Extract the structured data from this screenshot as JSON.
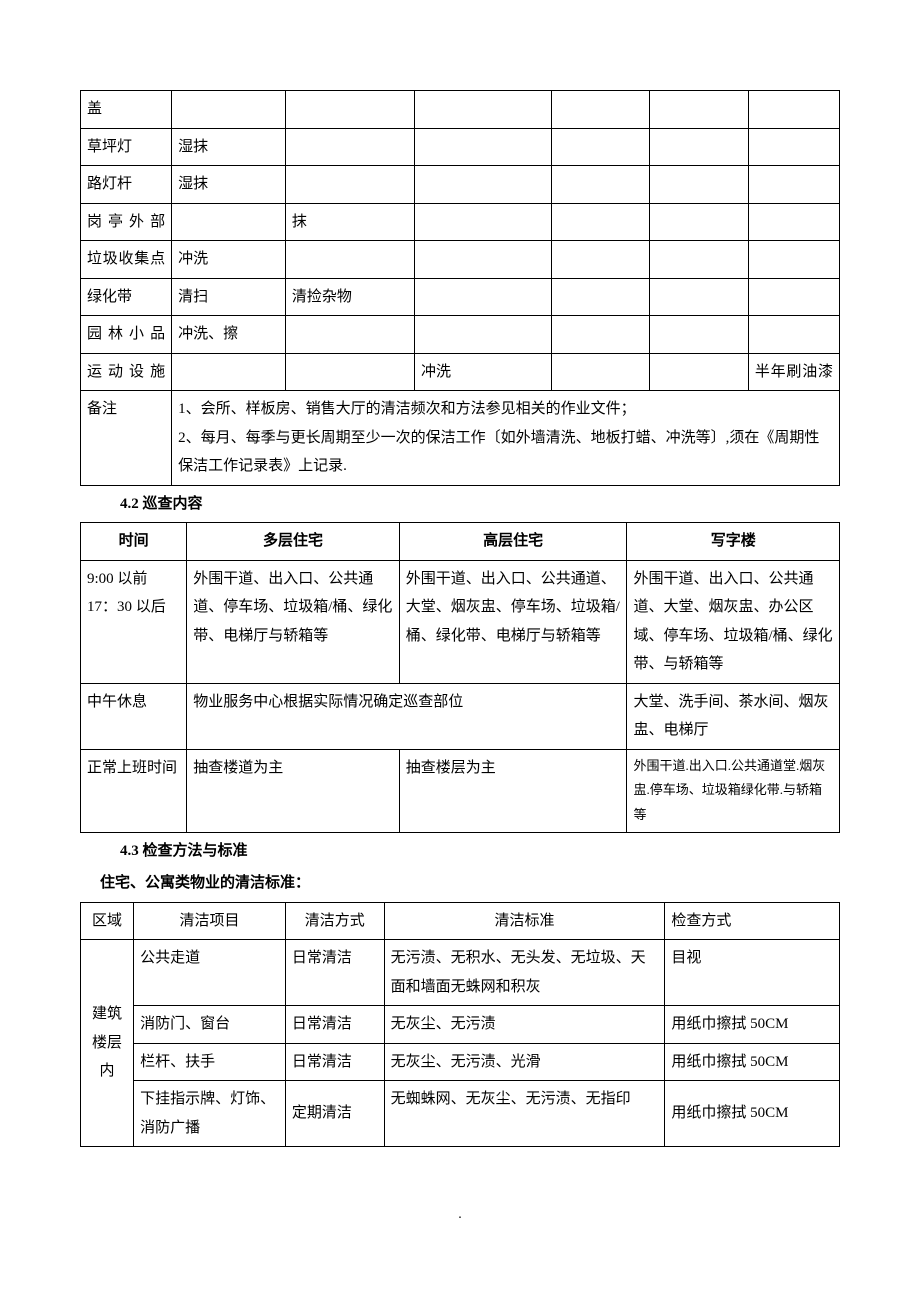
{
  "colors": {
    "text": "#000000",
    "border": "#000000",
    "background": "#ffffff"
  },
  "typography": {
    "font_family": "SimSun",
    "body_fontsize_pt": 11,
    "heading_weight": "bold",
    "line_height": 1.9
  },
  "table1": {
    "rows": [
      {
        "c0": "盖",
        "c1": "",
        "c2": "",
        "c3": "",
        "c4": "",
        "c5": "",
        "c6": ""
      },
      {
        "c0": "草坪灯",
        "c1": "湿抹",
        "c2": "",
        "c3": "",
        "c4": "",
        "c5": "",
        "c6": ""
      },
      {
        "c0": "路灯杆",
        "c1": "湿抹",
        "c2": "",
        "c3": "",
        "c4": "",
        "c5": "",
        "c6": ""
      },
      {
        "c0": "岗亭外部",
        "c1": "",
        "c2": "抹",
        "c3": "",
        "c4": "",
        "c5": "",
        "c6": ""
      },
      {
        "c0": "垃圾收集点",
        "c1": "冲洗",
        "c2": "",
        "c3": "",
        "c4": "",
        "c5": "",
        "c6": ""
      },
      {
        "c0": "绿化带",
        "c1": "清扫",
        "c2": "清捡杂物",
        "c3": "",
        "c4": "",
        "c5": "",
        "c6": ""
      },
      {
        "c0": "园林小品",
        "c1": "冲洗、擦",
        "c2": "",
        "c3": "",
        "c4": "",
        "c5": "",
        "c6": ""
      },
      {
        "c0": "运动设施",
        "c1": "",
        "c2": "",
        "c3": "冲洗",
        "c4": "",
        "c5": "",
        "c6": "半年刷油漆"
      }
    ],
    "note_label": "备注",
    "note_line1": "1、会所、样板房、销售大厅的清洁频次和方法参见相关的作业文件；",
    "note_line2": "2、每月、每季与更长周期至少一次的保洁工作〔如外墙清洗、地板打蜡、冲洗等〕,须在《周期性保洁工作记录表》上记录."
  },
  "section42": {
    "title": "4.2 巡查内容",
    "headers": {
      "h0": "时间",
      "h1": "多层住宅",
      "h2": "高层住宅",
      "h3": "写字楼"
    },
    "rows": [
      {
        "c0": "9:00 以前\n17：30 以后",
        "c1": "外围干道、出入口、公共通道、停车场、垃圾箱/桶、绿化带、电梯厅与轿箱等",
        "c2": "外围干道、出入口、公共通道、大堂、烟灰盅、停车场、垃圾箱/桶、绿化带、电梯厅与轿箱等",
        "c3": "外围干道、出入口、公共通道、大堂、烟灰盅、办公区域、停车场、垃圾箱/桶、绿化带、与轿箱等"
      },
      {
        "c0": "中午休息",
        "c1_2": "物业服务中心根据实际情况确定巡查部位",
        "c3": "大堂、洗手间、茶水间、烟灰盅、电梯厅"
      },
      {
        "c0": "正常上班时间",
        "c1": "抽查楼道为主",
        "c2": "抽查楼层为主",
        "c3": "外围干道.出入口.公共通道堂.烟灰盅.停车场、垃圾箱绿化带.与轿箱等"
      }
    ]
  },
  "section43": {
    "title": "4.3 检查方法与标准",
    "subtitle": "住宅、公寓类物业的清洁标准：",
    "headers": {
      "h0": "区域",
      "h1": "清洁项目",
      "h2": "清洁方式",
      "h3": "清洁标准",
      "h4": "检查方式"
    },
    "region_label": "建筑楼层内",
    "rows": [
      {
        "c1": "公共走道",
        "c2": "日常清洁",
        "c3": "无污渍、无积水、无头发、无垃圾、天面和墙面无蛛网和积灰",
        "c4": "目视"
      },
      {
        "c1": "消防门、窗台",
        "c2": "日常清洁",
        "c3": "无灰尘、无污渍",
        "c4": "用纸巾擦拭 50CM"
      },
      {
        "c1": "栏杆、扶手",
        "c2": "日常清洁",
        "c3": "无灰尘、无污渍、光滑",
        "c4": "用纸巾擦拭 50CM"
      },
      {
        "c1": "下挂指示牌、灯饰、消防广播",
        "c2": "定期清洁",
        "c3": "无蜘蛛网、无灰尘、无污渍、无指印",
        "c4": "用纸巾擦拭 50CM"
      }
    ]
  },
  "footer": "."
}
